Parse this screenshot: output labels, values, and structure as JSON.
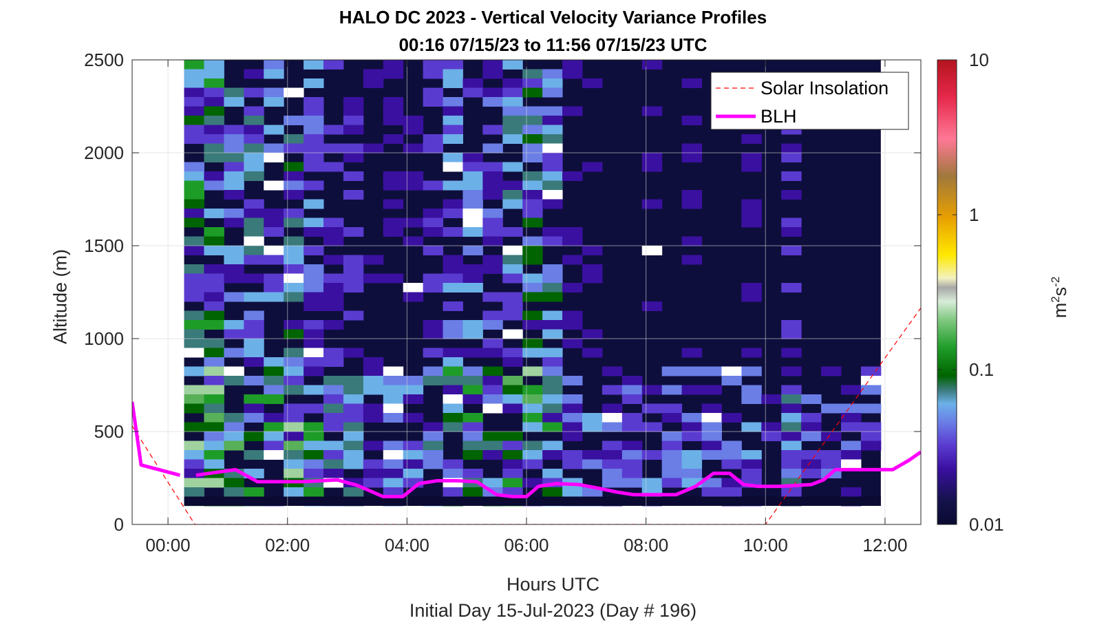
{
  "chart_data": {
    "type": "heatmap",
    "title": "HALO DC 2023 - Vertical Velocity Variance Profiles",
    "subtitle": "00:16 07/15/23 to 11:56 07/15/23  UTC",
    "xlabel": "Hours UTC",
    "ylabel": "Altitude (m)",
    "day_label": "Initial Day 15-Jul-2023 (Day # 196)",
    "xlim": [
      -0.6,
      12.6
    ],
    "ylim": [
      0,
      2500
    ],
    "x_ticks": [
      0,
      2,
      4,
      6,
      8,
      10,
      12
    ],
    "x_tick_labels": [
      "00:00",
      "02:00",
      "04:00",
      "06:00",
      "08:00",
      "10:00",
      "12:00"
    ],
    "y_ticks": [
      0,
      500,
      1000,
      1500,
      2000,
      2500
    ],
    "y_tick_labels": [
      "0",
      "500",
      "1000",
      "1500",
      "2000",
      "2500"
    ],
    "grid": true,
    "legend_location": "top-right",
    "colorbar": {
      "scale": "log",
      "range": [
        0.01,
        10
      ],
      "tick_values": [
        0.01,
        0.1,
        1,
        10
      ],
      "tick_labels": [
        "0.01",
        "0.1",
        "1",
        "10"
      ],
      "label_base": "m",
      "label_sup1": "2",
      "label_mid": "s",
      "label_sup2": "-2"
    },
    "heatmap_time_range_hours": [
      0.27,
      11.93
    ],
    "heatmap_altitude_range_m": [
      100,
      2500
    ],
    "series": [
      {
        "name": "Solar Insolation",
        "style": "dashed",
        "color": "#ff0000",
        "x": [
          -0.6,
          0.45,
          10.0,
          12.6
        ],
        "y": [
          530,
          0,
          0,
          1165
        ]
      },
      {
        "name": "BLH",
        "style": "solid",
        "color": "#ff00ff",
        "segments": [
          {
            "x": [
              -0.6,
              -0.45,
              0.2
            ],
            "y": [
              660,
              320,
              265
            ]
          },
          {
            "x": [
              0.47,
              1.13,
              1.5,
              2.27,
              2.83,
              3.17,
              3.6,
              3.93,
              4.2,
              4.5,
              4.83,
              5.17,
              5.5,
              5.77,
              6.0,
              6.2,
              6.5,
              6.87,
              7.2,
              7.5,
              7.8,
              8.13,
              8.5,
              8.83,
              9.13,
              9.4,
              9.63,
              9.87,
              10.23,
              10.53,
              10.77,
              10.97,
              11.17,
              11.5,
              11.87,
              12.13,
              12.4,
              12.6
            ],
            "y": [
              265,
              295,
              230,
              230,
              240,
              210,
              150,
              150,
              220,
              235,
              235,
              230,
              160,
              150,
              150,
              205,
              220,
              215,
              195,
              175,
              160,
              160,
              160,
              205,
              275,
              275,
              215,
              205,
              205,
              210,
              215,
              240,
              295,
              295,
              295,
              295,
              345,
              390
            ]
          }
        ]
      }
    ]
  }
}
